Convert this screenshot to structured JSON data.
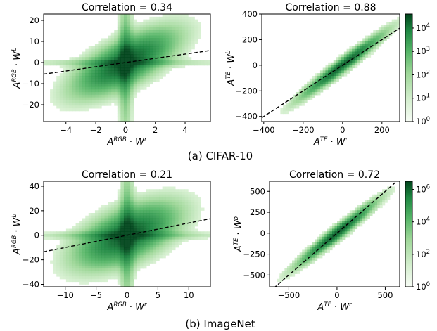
{
  "figure": {
    "captions": [
      "(a) CIFAR-10",
      "(b) ImageNet"
    ],
    "colormap": {
      "name": "Greens",
      "low": "#f7fcf5",
      "high": "#00441b"
    }
  },
  "chart_data": [
    {
      "type": "heatmap",
      "group": "(a) CIFAR-10",
      "title": "Correlation = 0.34",
      "xlabel": {
        "base": "A",
        "sup": "RGB",
        "mid": " · W",
        "sup2": "r"
      },
      "ylabel": {
        "base": "A",
        "sup": "RGB",
        "mid": " · W",
        "sup2": "b"
      },
      "xlim": [
        -5.5,
        5.7
      ],
      "ylim": [
        -28,
        23
      ],
      "xticks": [
        -4,
        -2,
        0,
        2,
        4
      ],
      "yticks": [
        -20,
        -10,
        0,
        10,
        20
      ],
      "reference_line": "y = x (dashed)",
      "correlation": 0.34,
      "density_shape": {
        "spread_x": 1.4,
        "spread_y": 6.5,
        "slope": 1.2,
        "spikes": "vertical and horizontal streaks at 0"
      }
    },
    {
      "type": "heatmap",
      "group": "(a) CIFAR-10",
      "title": "Correlation = 0.88",
      "xlabel": {
        "base": "A",
        "sup": "TE",
        "mid": " · W",
        "sup2": "r"
      },
      "ylabel": {
        "base": "A",
        "sup": "TE",
        "mid": " · W",
        "sup2": "b"
      },
      "xlim": [
        -410,
        290
      ],
      "ylim": [
        -440,
        400
      ],
      "xticks": [
        -400,
        -200,
        0,
        200
      ],
      "yticks": [
        -400,
        -200,
        0,
        200,
        400
      ],
      "reference_line": "y = x (dashed)",
      "correlation": 0.88,
      "colorbar": {
        "scale": "log",
        "ticks": [
          "10^0",
          "10^1",
          "10^2",
          "10^3",
          "10^4"
        ],
        "min_exp": 0,
        "max_exp": 4.6
      }
    },
    {
      "type": "heatmap",
      "group": "(b) ImageNet",
      "title": "Correlation = 0.21",
      "xlabel": {
        "base": "A",
        "sup": "RGB",
        "mid": " · W",
        "sup2": "r"
      },
      "ylabel": {
        "base": "A",
        "sup": "RGB",
        "mid": " · W",
        "sup2": "b"
      },
      "xlim": [
        -13.5,
        13.5
      ],
      "ylim": [
        -42,
        44
      ],
      "xticks": [
        -10,
        -5,
        0,
        5,
        10
      ],
      "yticks": [
        -40,
        -20,
        0,
        20,
        40
      ],
      "reference_line": "y = x (dashed)",
      "correlation": 0.21
    },
    {
      "type": "heatmap",
      "group": "(b) ImageNet",
      "title": "Correlation = 0.72",
      "xlabel": {
        "base": "A",
        "sup": "TE",
        "mid": " · W",
        "sup2": "r"
      },
      "ylabel": {
        "base": "A",
        "sup": "TE",
        "mid": " · W",
        "sup2": "b"
      },
      "xlim": [
        -700,
        650
      ],
      "ylim": [
        -640,
        620
      ],
      "xticks": [
        -500,
        0,
        500
      ],
      "yticks": [
        -500,
        -250,
        0,
        250,
        500
      ],
      "reference_line": "y = x (dashed)",
      "correlation": 0.72,
      "colorbar": {
        "scale": "log",
        "ticks": [
          "10^0",
          "10^2",
          "10^4",
          "10^6"
        ],
        "min_exp": 0,
        "max_exp": 6.5
      }
    }
  ]
}
